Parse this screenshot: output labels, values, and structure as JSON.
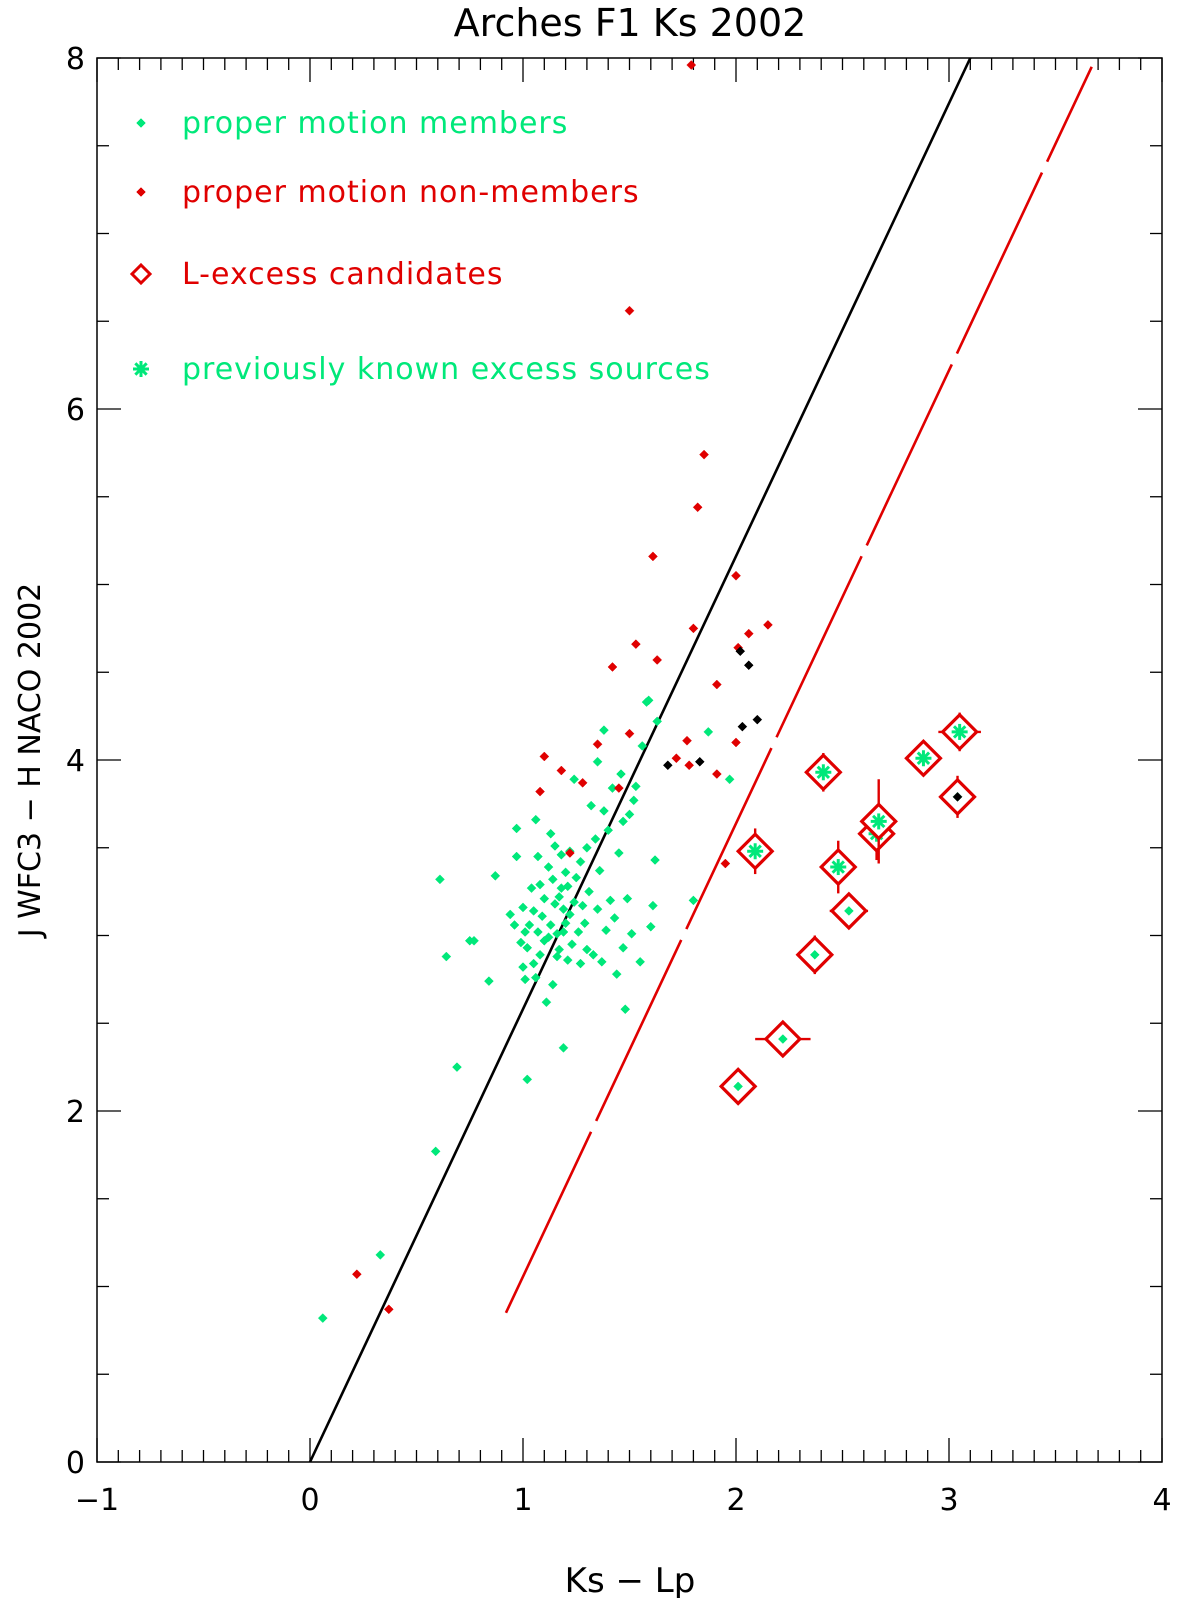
{
  "chart_data": {
    "type": "scatter",
    "title": "Arches F1 Ks 2002",
    "xlabel": "Ks − Lp",
    "ylabel": "J WFC3 − H NACO 2002",
    "xlim": [
      -1,
      4
    ],
    "ylim": [
      0,
      8
    ],
    "xticks": [
      -1,
      0,
      1,
      2,
      3,
      4
    ],
    "yticks": [
      0,
      2,
      4,
      6,
      8
    ],
    "x_minor_step": 0.1,
    "y_minor_step": 0.5,
    "grid": false,
    "legend": {
      "placement": "top-left",
      "entries": [
        {
          "label": "proper motion members",
          "marker": "small-diamond",
          "color": "#00e87a"
        },
        {
          "label": "proper motion non-members",
          "marker": "small-diamond",
          "color": "#e00000"
        },
        {
          "label": "L-excess candidates",
          "marker": "open-diamond",
          "color": "#e00000"
        },
        {
          "label": "previously known excess sources",
          "marker": "asterisk",
          "color": "#00e87a"
        }
      ]
    },
    "colors": {
      "members": "#00e87a",
      "non_members": "#e00000",
      "unclassified": "#000000",
      "candidates": "#e00000",
      "known_excess": "#00e87a",
      "reddening_line": "#000000",
      "excess_boundary": "#e00000"
    },
    "lines": [
      {
        "name": "reddening vector",
        "style": "solid",
        "color": "#000000",
        "points": [
          [
            0,
            0
          ],
          [
            3.1,
            8
          ]
        ]
      },
      {
        "name": "excess threshold",
        "style": "long-dash",
        "color": "#e00000",
        "points": [
          [
            0.92,
            0.85
          ],
          [
            3.67,
            7.95
          ]
        ]
      }
    ],
    "series": [
      {
        "name": "proper motion members",
        "color": "#00e87a",
        "points": [
          [
            0.06,
            0.82
          ],
          [
            0.33,
            1.18
          ],
          [
            0.59,
            1.77
          ],
          [
            0.69,
            2.25
          ],
          [
            0.61,
            3.32
          ],
          [
            0.64,
            2.88
          ],
          [
            0.75,
            2.97
          ],
          [
            0.77,
            2.97
          ],
          [
            0.84,
            2.74
          ],
          [
            0.87,
            3.34
          ],
          [
            0.94,
            3.12
          ],
          [
            0.96,
            3.06
          ],
          [
            0.97,
            3.45
          ],
          [
            0.97,
            3.61
          ],
          [
            0.99,
            2.96
          ],
          [
            1.0,
            3.16
          ],
          [
            1.0,
            2.82
          ],
          [
            1.01,
            2.75
          ],
          [
            1.01,
            3.02
          ],
          [
            1.02,
            2.93
          ],
          [
            1.02,
            2.18
          ],
          [
            1.03,
            3.06
          ],
          [
            1.04,
            3.27
          ],
          [
            1.05,
            2.84
          ],
          [
            1.05,
            3.14
          ],
          [
            1.06,
            2.76
          ],
          [
            1.06,
            3.66
          ],
          [
            1.07,
            3.02
          ],
          [
            1.07,
            3.45
          ],
          [
            1.08,
            2.89
          ],
          [
            1.08,
            3.29
          ],
          [
            1.09,
            3.11
          ],
          [
            1.1,
            2.97
          ],
          [
            1.1,
            3.21
          ],
          [
            1.11,
            2.62
          ],
          [
            1.12,
            2.99
          ],
          [
            1.12,
            3.39
          ],
          [
            1.13,
            3.58
          ],
          [
            1.13,
            3.06
          ],
          [
            1.14,
            2.72
          ],
          [
            1.14,
            3.32
          ],
          [
            1.15,
            3.18
          ],
          [
            1.15,
            3.51
          ],
          [
            1.16,
            2.88
          ],
          [
            1.16,
            3.01
          ],
          [
            1.17,
            2.92
          ],
          [
            1.17,
            3.22
          ],
          [
            1.18,
            3.27
          ],
          [
            1.18,
            3.46
          ],
          [
            1.19,
            3.02
          ],
          [
            1.19,
            3.15
          ],
          [
            1.19,
            2.36
          ],
          [
            1.2,
            3.36
          ],
          [
            1.2,
            3.07
          ],
          [
            1.21,
            2.86
          ],
          [
            1.21,
            3.28
          ],
          [
            1.22,
            3.12
          ],
          [
            1.22,
            3.48
          ],
          [
            1.23,
            2.95
          ],
          [
            1.24,
            3.19
          ],
          [
            1.24,
            3.89
          ],
          [
            1.25,
            3.33
          ],
          [
            1.26,
            3.02
          ],
          [
            1.27,
            2.84
          ],
          [
            1.27,
            3.42
          ],
          [
            1.28,
            3.17
          ],
          [
            1.29,
            3.07
          ],
          [
            1.3,
            3.5
          ],
          [
            1.3,
            2.92
          ],
          [
            1.31,
            3.25
          ],
          [
            1.32,
            3.74
          ],
          [
            1.33,
            2.89
          ],
          [
            1.34,
            3.55
          ],
          [
            1.35,
            3.99
          ],
          [
            1.35,
            3.15
          ],
          [
            1.36,
            3.37
          ],
          [
            1.37,
            2.85
          ],
          [
            1.38,
            4.17
          ],
          [
            1.38,
            3.71
          ],
          [
            1.39,
            3.03
          ],
          [
            1.4,
            3.6
          ],
          [
            1.41,
            3.2
          ],
          [
            1.42,
            3.84
          ],
          [
            1.43,
            3.1
          ],
          [
            1.44,
            2.78
          ],
          [
            1.45,
            3.47
          ],
          [
            1.46,
            3.92
          ],
          [
            1.47,
            2.93
          ],
          [
            1.47,
            3.65
          ],
          [
            1.48,
            2.58
          ],
          [
            1.49,
            3.21
          ],
          [
            1.5,
            3.69
          ],
          [
            1.51,
            3.01
          ],
          [
            1.52,
            3.77
          ],
          [
            1.53,
            3.85
          ],
          [
            1.55,
            2.85
          ],
          [
            1.56,
            4.08
          ],
          [
            1.58,
            4.33
          ],
          [
            1.59,
            4.34
          ],
          [
            1.6,
            3.05
          ],
          [
            1.61,
            3.17
          ],
          [
            1.62,
            3.43
          ],
          [
            1.63,
            4.22
          ],
          [
            1.8,
            3.2
          ],
          [
            1.87,
            4.16
          ],
          [
            1.97,
            3.89
          ]
        ]
      },
      {
        "name": "proper motion non-members",
        "color": "#e00000",
        "points": [
          [
            0.22,
            1.07
          ],
          [
            0.37,
            0.87
          ],
          [
            1.08,
            3.82
          ],
          [
            1.1,
            4.02
          ],
          [
            1.18,
            3.94
          ],
          [
            1.22,
            3.47
          ],
          [
            1.28,
            3.87
          ],
          [
            1.35,
            4.09
          ],
          [
            1.42,
            4.53
          ],
          [
            1.45,
            3.84
          ],
          [
            1.5,
            4.15
          ],
          [
            1.5,
            6.56
          ],
          [
            1.53,
            4.66
          ],
          [
            1.61,
            5.16
          ],
          [
            1.63,
            4.57
          ],
          [
            1.72,
            4.01
          ],
          [
            1.77,
            4.11
          ],
          [
            1.78,
            3.97
          ],
          [
            1.79,
            7.96
          ],
          [
            1.8,
            4.75
          ],
          [
            1.82,
            5.44
          ],
          [
            1.85,
            5.74
          ],
          [
            1.91,
            4.43
          ],
          [
            1.91,
            3.92
          ],
          [
            1.95,
            3.41
          ],
          [
            2.0,
            4.1
          ],
          [
            2.0,
            5.05
          ],
          [
            2.01,
            4.64
          ],
          [
            2.06,
            4.72
          ],
          [
            2.15,
            4.77
          ]
        ]
      },
      {
        "name": "unclassified",
        "color": "#000000",
        "points": [
          [
            1.68,
            3.97
          ],
          [
            1.83,
            3.99
          ],
          [
            2.02,
            4.62
          ],
          [
            2.06,
            4.54
          ],
          [
            2.03,
            4.19
          ],
          [
            2.1,
            4.23
          ],
          [
            3.04,
            3.79
          ]
        ]
      },
      {
        "name": "L-excess candidates",
        "color": "#e00000",
        "points": [
          {
            "x": 2.01,
            "y": 2.14,
            "ex": 0.08,
            "ey": 0.04,
            "known": false
          },
          {
            "x": 2.22,
            "y": 2.41,
            "ex": 0.13,
            "ey": 0.04,
            "known": false
          },
          {
            "x": 2.37,
            "y": 2.89,
            "ex": 0.04,
            "ey": 0.11,
            "known": false
          },
          {
            "x": 2.53,
            "y": 3.14,
            "ex": 0.09,
            "ey": 0.04,
            "known": false
          },
          {
            "x": 2.48,
            "y": 3.39,
            "ex": 0.04,
            "ey": 0.15,
            "known": true
          },
          {
            "x": 2.09,
            "y": 3.48,
            "ex": 0.04,
            "ey": 0.13,
            "known": true
          },
          {
            "x": 2.66,
            "y": 3.58,
            "ex": 0.08,
            "ey": 0.15,
            "known": true
          },
          {
            "x": 2.67,
            "y": 3.65,
            "ex": 0.04,
            "ey": 0.24,
            "known": true
          },
          {
            "x": 2.41,
            "y": 3.93,
            "ex": 0.07,
            "ey": 0.11,
            "known": true
          },
          {
            "x": 2.88,
            "y": 4.01,
            "ex": 0.08,
            "ey": 0.04,
            "known": true
          },
          {
            "x": 3.05,
            "y": 4.16,
            "ex": 0.1,
            "ey": 0.11,
            "known": true
          },
          {
            "x": 3.04,
            "y": 3.79,
            "ex": 0.07,
            "ey": 0.12,
            "known": false
          }
        ]
      }
    ]
  }
}
